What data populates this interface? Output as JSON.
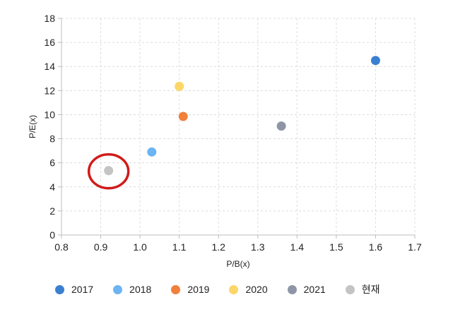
{
  "chart_data": {
    "type": "scatter",
    "xlabel": "P/B(x)",
    "ylabel": "P/E(x)",
    "xlim": [
      0.8,
      1.7
    ],
    "ylim": [
      0,
      18
    ],
    "x_ticks": [
      "0.8",
      "0.9",
      "1.0",
      "1.1",
      "1.2",
      "1.3",
      "1.4",
      "1.5",
      "1.6",
      "1.7"
    ],
    "y_ticks": [
      "0",
      "2",
      "4",
      "6",
      "8",
      "10",
      "12",
      "14",
      "16",
      "18"
    ],
    "grid": true,
    "legend_position": "bottom",
    "series": [
      {
        "name": "2017",
        "color": "#3A7FD1",
        "x": 1.6,
        "y": 14.5
      },
      {
        "name": "2018",
        "color": "#6CB4F2",
        "x": 1.03,
        "y": 6.9
      },
      {
        "name": "2019",
        "color": "#F0803C",
        "x": 1.11,
        "y": 9.85
      },
      {
        "name": "2020",
        "color": "#FCD667",
        "x": 1.1,
        "y": 12.35
      },
      {
        "name": "2021",
        "color": "#8E96A6",
        "x": 1.36,
        "y": 9.05
      },
      {
        "name": "현재",
        "color": "#C4C4C4",
        "x": 0.92,
        "y": 5.35
      }
    ],
    "annotations": [
      {
        "type": "circle",
        "color": "#D11B1B",
        "target": "현재"
      }
    ]
  }
}
